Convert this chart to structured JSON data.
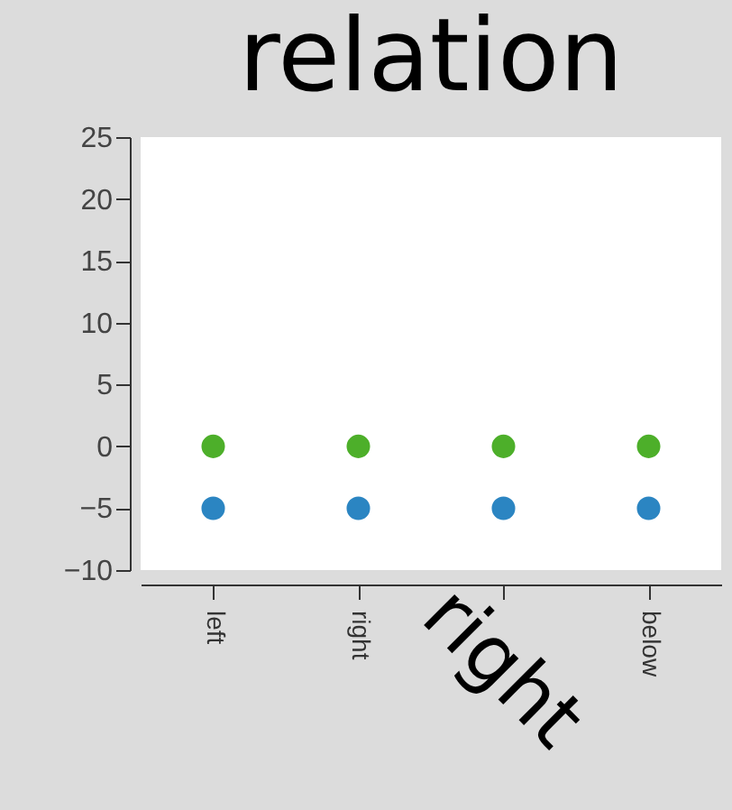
{
  "chart_data": {
    "type": "scatter",
    "title": "relation",
    "categories": [
      "left",
      "right",
      null,
      "below"
    ],
    "series": [
      {
        "color": "#4daf2a",
        "values": [
          0,
          0,
          0,
          0
        ]
      },
      {
        "color": "#2b85c2",
        "values": [
          -5,
          -5,
          -5,
          -5
        ]
      }
    ],
    "ylim": [
      -10,
      25
    ],
    "yticks": [
      -10,
      -5,
      0,
      5,
      10,
      15,
      20,
      25
    ],
    "grid": false,
    "legend": false,
    "marker": "circle",
    "annotations": [
      "right"
    ]
  }
}
